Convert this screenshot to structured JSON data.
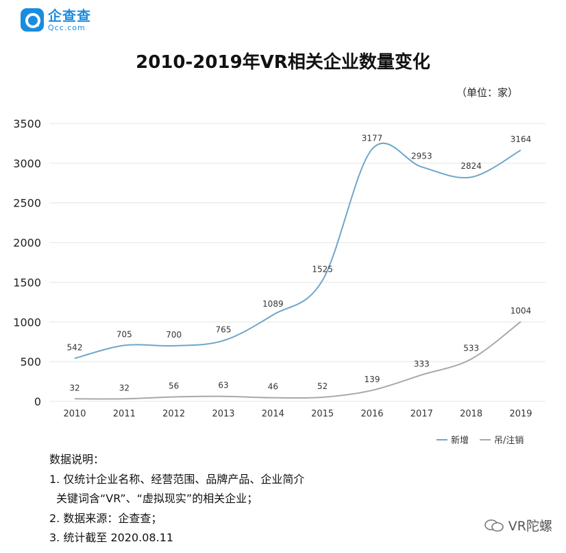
{
  "header": {
    "logo_name": "企查查",
    "logo_domain": "Qcc.com"
  },
  "unit_label": "（单位：家）",
  "notes": {
    "heading": "数据说明：",
    "line1": "1. 仅统计企业名称、经营范围、品牌产品、企业简介",
    "line1b": "关键词含“VR”、“虚拟现实”的相关企业；",
    "line2": "2. 数据来源：企查查；",
    "line3": "3. 统计截至 2020.08.11"
  },
  "watermark": "VR陀螺",
  "colors": {
    "series_new": "#6fa6c9",
    "series_cancel": "#a8a8a8",
    "grid": "#e4e4e4",
    "brand": "#1a8ce0"
  },
  "chart_data": {
    "type": "line",
    "title": "2010-2019年VR相关企业数量变化",
    "x": [
      "2010",
      "2011",
      "2012",
      "2013",
      "2014",
      "2015",
      "2016",
      "2017",
      "2018",
      "2019"
    ],
    "ylim": [
      0,
      3500
    ],
    "yticks": [
      0,
      500,
      1000,
      1500,
      2000,
      2500,
      3000,
      3500
    ],
    "grid": true,
    "legend": "bottom-right",
    "series": [
      {
        "name": "新增",
        "values": [
          542,
          705,
          700,
          765,
          1089,
          1525,
          3177,
          2953,
          2824,
          3164
        ]
      },
      {
        "name": "吊/注销",
        "values": [
          32,
          32,
          56,
          63,
          46,
          52,
          139,
          333,
          533,
          1004
        ]
      }
    ]
  }
}
